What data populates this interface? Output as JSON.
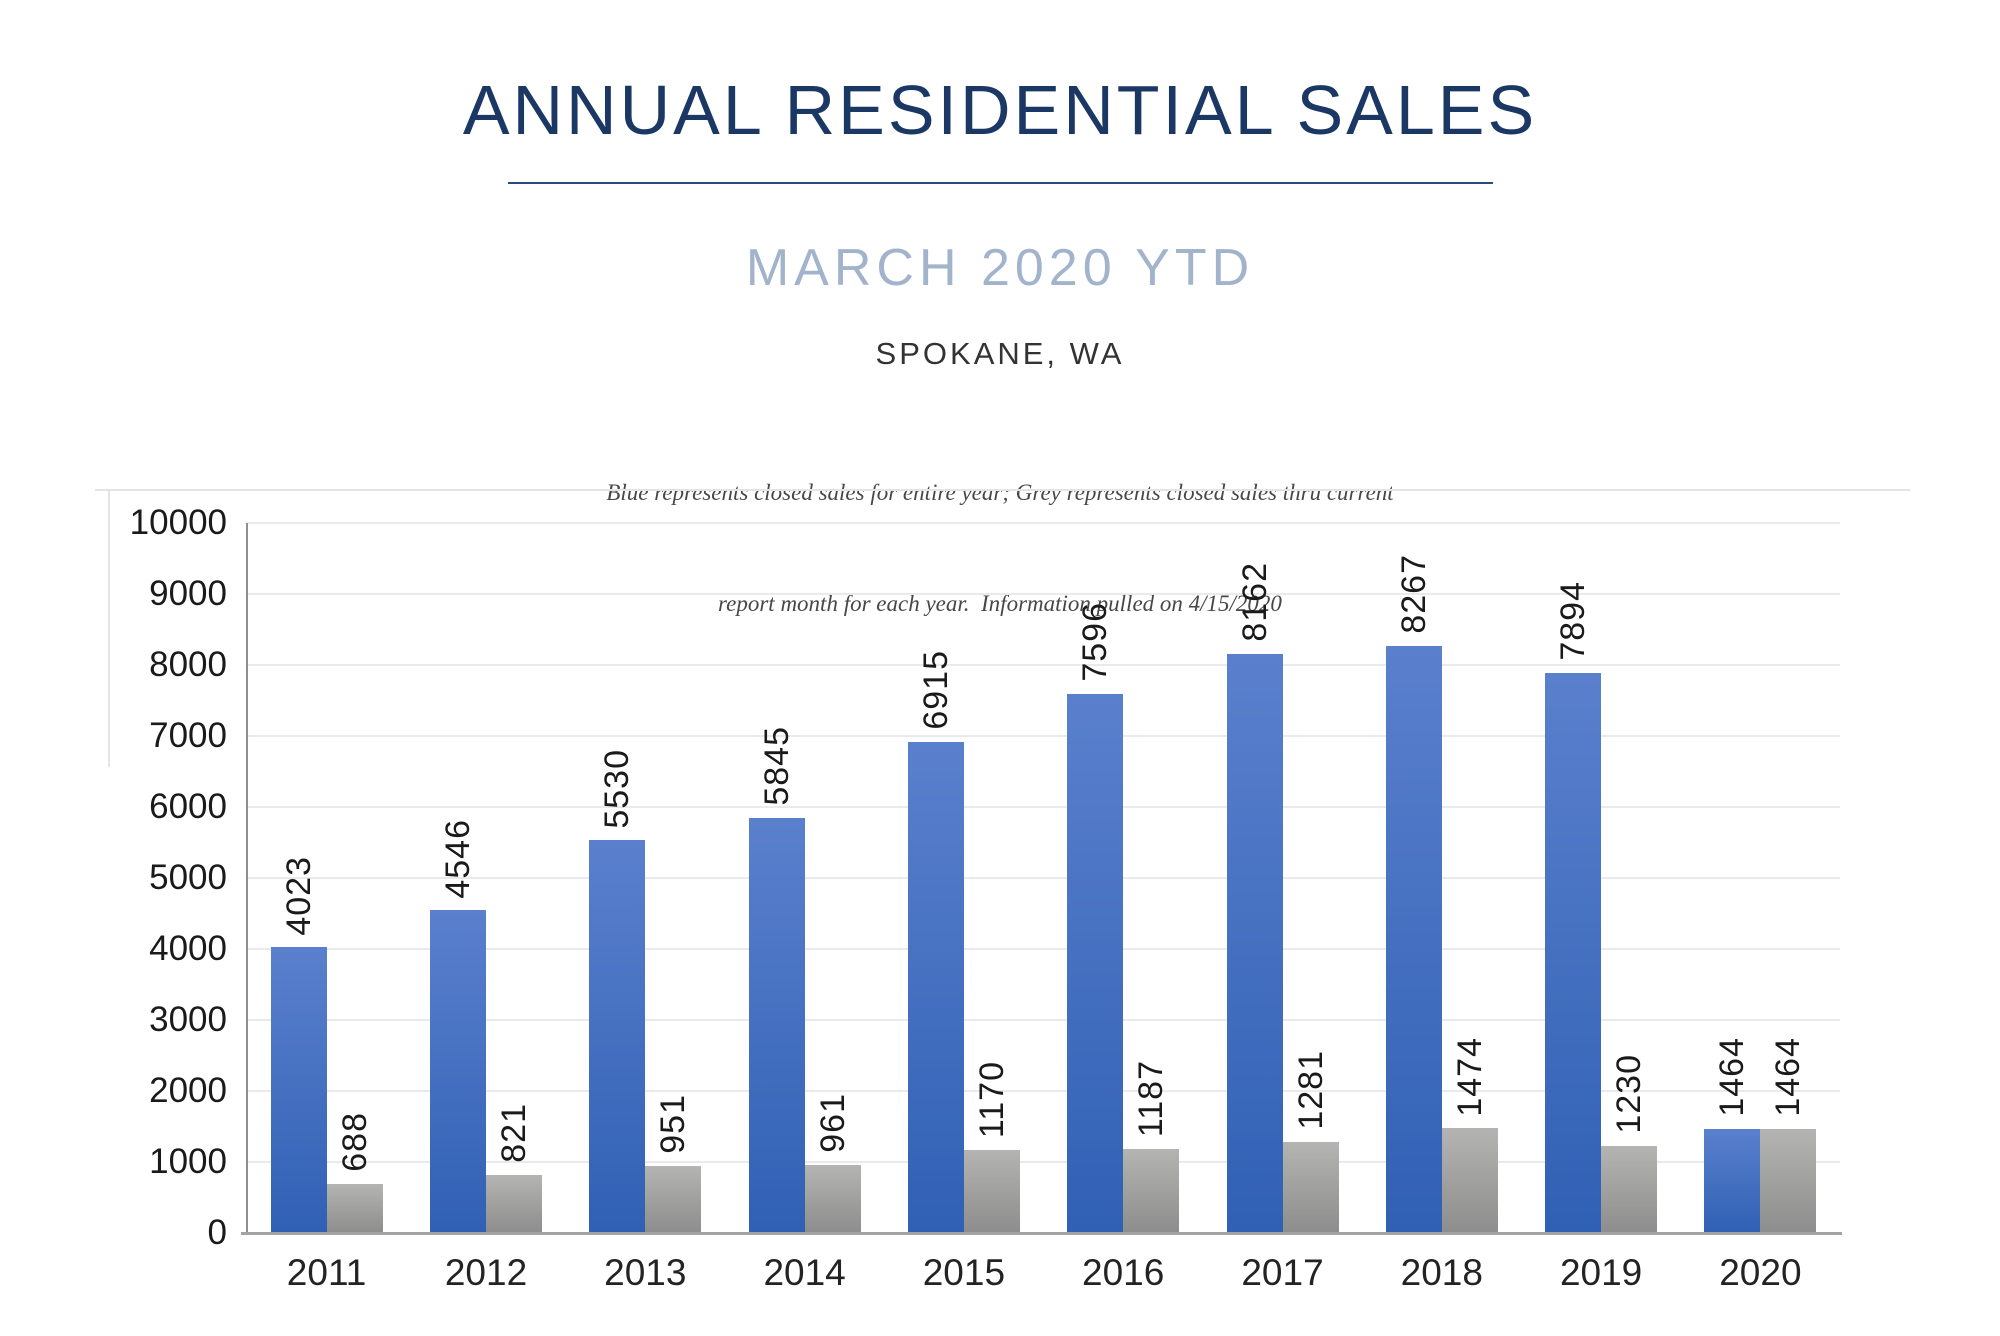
{
  "header": {
    "title": "ANNUAL RESIDENTIAL SALES",
    "subtitle": "MARCH 2020 YTD",
    "location": "SPOKANE, WA",
    "note_line1": "Blue represents closed sales for entire year; Grey represents closed sales thru current",
    "note_line2": "report month for each year.  Information pulled on 4/15/2020"
  },
  "colors": {
    "title_navy": "#1b3865",
    "subtitle_blue_grey": "#a2b4cc",
    "blue_bar_top": "#5a80cd",
    "blue_bar_bottom": "#3060b4",
    "grey_bar_top": "#b4b4b2",
    "grey_bar_bottom": "#8d8d8d",
    "gridline": "#e9e9ef",
    "axis_line_vertical": "#8f8f8f",
    "axis_line_horizontal": "#a3a3a3"
  },
  "chart_data": {
    "type": "bar",
    "title": "Annual Residential Sales, March 2020 YTD, Spokane WA",
    "categories": [
      "2011",
      "2012",
      "2013",
      "2014",
      "2015",
      "2016",
      "2017",
      "2018",
      "2019",
      "2020"
    ],
    "series": [
      {
        "name": "Closed sales for entire year (blue)",
        "values": [
          4023,
          4546,
          5530,
          5845,
          6915,
          7596,
          8162,
          8267,
          7894,
          1464
        ]
      },
      {
        "name": "Closed sales thru current report month (grey)",
        "values": [
          688,
          821,
          951,
          961,
          1170,
          1187,
          1281,
          1474,
          1230,
          1464
        ]
      }
    ],
    "xlabel": "",
    "ylabel": "",
    "ylim": [
      0,
      10000
    ],
    "ytick_step": 1000,
    "ytick_labels": [
      "0",
      "1000",
      "2000",
      "3000",
      "4000",
      "5000",
      "6000",
      "7000",
      "8000",
      "9000",
      "10000"
    ],
    "grid": "horizontal",
    "legend_position": "none",
    "value_labels": "rotated-90-bottom-to-top"
  }
}
